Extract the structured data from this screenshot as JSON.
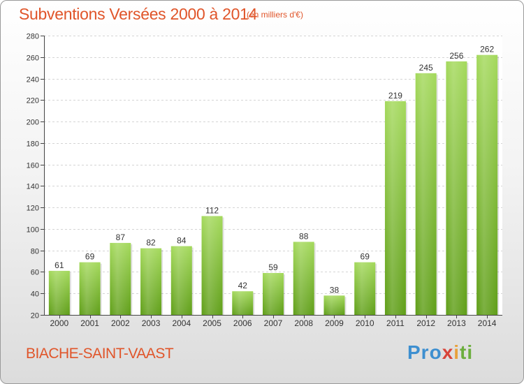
{
  "header": {
    "title": "Subventions Versées 2000 à 2014",
    "subtitle": "(en milliers d'€)"
  },
  "footer": {
    "commune": "BIACHE-SAINT-VAAST",
    "brand": "Proxiti"
  },
  "colors": {
    "accent": "#e0552a",
    "bar_top": "#9fd45a",
    "bar_bottom": "#5f9e18"
  },
  "chart_data": {
    "type": "bar",
    "title": "Subventions Versées 2000 à 2014",
    "subtitle": "(en milliers d'€)",
    "xlabel": "",
    "ylabel": "",
    "categories": [
      "2000",
      "2001",
      "2002",
      "2003",
      "2004",
      "2005",
      "2006",
      "2007",
      "2008",
      "2009",
      "2010",
      "2011",
      "2012",
      "2013",
      "2014"
    ],
    "values": [
      61,
      69,
      87,
      82,
      84,
      112,
      42,
      59,
      88,
      38,
      69,
      219,
      245,
      256,
      262
    ],
    "ylim": [
      20,
      280
    ],
    "yticks": [
      20,
      40,
      60,
      80,
      100,
      120,
      140,
      160,
      180,
      200,
      220,
      240,
      260,
      280
    ],
    "grid": true,
    "data_labels": true
  }
}
